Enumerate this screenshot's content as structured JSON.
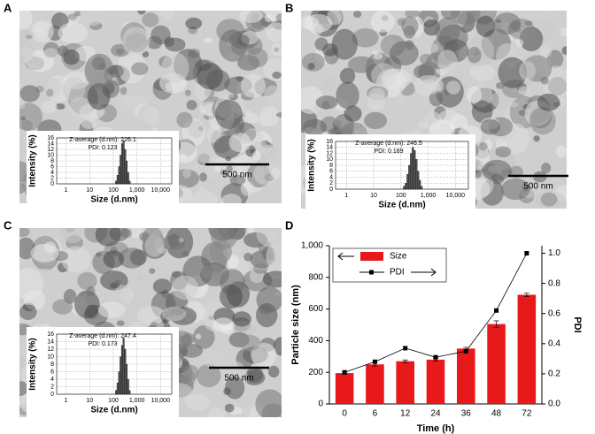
{
  "chart_data": [
    {
      "type": "histogram",
      "panel": "A",
      "annotations": [
        "Z-average (d.nm): 226.1",
        "PDI: 0.123"
      ],
      "scale_bar": "500 nm",
      "xlabel": "Size (d.nm)",
      "ylabel": "Intensity (%)",
      "log_x": true,
      "grid": true,
      "color": "#555555",
      "bins": [
        122,
        142,
        164,
        190,
        220,
        255,
        295,
        342,
        396,
        459,
        531
      ],
      "counts": [
        1,
        3,
        6,
        10,
        14,
        15,
        12,
        8,
        4,
        1
      ],
      "xlim": [
        0.4,
        30000
      ],
      "xticks": [
        1,
        10,
        100,
        {
          "value": 1000,
          "label": "1,000"
        },
        {
          "value": 10000,
          "label": "10,000"
        }
      ],
      "ylim": [
        0,
        16
      ],
      "yticks": [
        0,
        2,
        4,
        6,
        8,
        10,
        12,
        14,
        16
      ]
    },
    {
      "type": "histogram",
      "panel": "B",
      "annotations": [
        "Z-average (d.nm): 246.5",
        "PDI: 0.189"
      ],
      "scale_bar": "500 nm",
      "xlabel": "Size (d.nm)",
      "ylabel": "Intensity (%)",
      "log_x": true,
      "grid": true,
      "color": "#555555",
      "bins": [
        122,
        142,
        164,
        190,
        220,
        255,
        295,
        342,
        396,
        459,
        531,
        615
      ],
      "counts": [
        1,
        2,
        5,
        8,
        12,
        14,
        13,
        10,
        6,
        3,
        1
      ],
      "xlim": [
        0.4,
        30000
      ],
      "xticks": [
        1,
        10,
        100,
        {
          "value": 1000,
          "label": "1,000"
        },
        {
          "value": 10000,
          "label": "10,000"
        }
      ],
      "ylim": [
        0,
        16
      ],
      "yticks": [
        0,
        2,
        4,
        6,
        8,
        10,
        12,
        14,
        16
      ]
    },
    {
      "type": "histogram",
      "panel": "C",
      "annotations": [
        "Z-average (d.nm): 247.4",
        "PDI: 0.173"
      ],
      "scale_bar": "500 nm",
      "xlabel": "Size (d.nm)",
      "ylabel": "Intensity (%)",
      "log_x": true,
      "grid": true,
      "color": "#555555",
      "bins": [
        122,
        142,
        164,
        190,
        220,
        255,
        295,
        342,
        396,
        459,
        531
      ],
      "counts": [
        1,
        3,
        6,
        10,
        13,
        15,
        12,
        8,
        4,
        1
      ],
      "xlim": [
        0.4,
        30000
      ],
      "xticks": [
        1,
        10,
        100,
        {
          "value": 1000,
          "label": "1,000"
        },
        {
          "value": 10000,
          "label": "10,000"
        }
      ],
      "ylim": [
        0,
        16
      ],
      "yticks": [
        0,
        2,
        4,
        6,
        8,
        10,
        12,
        14,
        16
      ]
    },
    {
      "type": "bar",
      "panel": "D",
      "xlabel": "Time (h)",
      "ylabel": "Particle size (nm)",
      "y2label": "PDI",
      "categories": [
        "0",
        "6",
        "12",
        "24",
        "36",
        "48",
        "72"
      ],
      "series": [
        {
          "name": "Size",
          "color": "#e8191b",
          "values": [
            195,
            250,
            270,
            280,
            350,
            505,
            690
          ],
          "errors": [
            8,
            10,
            8,
            10,
            8,
            20,
            10
          ]
        },
        {
          "name": "PDI",
          "color": "#000000",
          "type": "line",
          "axis": "y2",
          "values": [
            0.21,
            0.28,
            0.37,
            0.31,
            0.35,
            0.62,
            1.0
          ]
        }
      ],
      "ylim": [
        0,
        1000
      ],
      "yticks": [
        0,
        200,
        400,
        600,
        800,
        {
          "value": 1000,
          "label": "1,000"
        }
      ],
      "y2lim": [
        0,
        1.05
      ],
      "y2ticks": [
        {
          "value": 0,
          "label": "0.0"
        },
        0.2,
        0.4,
        0.6,
        0.8,
        {
          "value": 1,
          "label": "1.0"
        }
      ]
    }
  ]
}
